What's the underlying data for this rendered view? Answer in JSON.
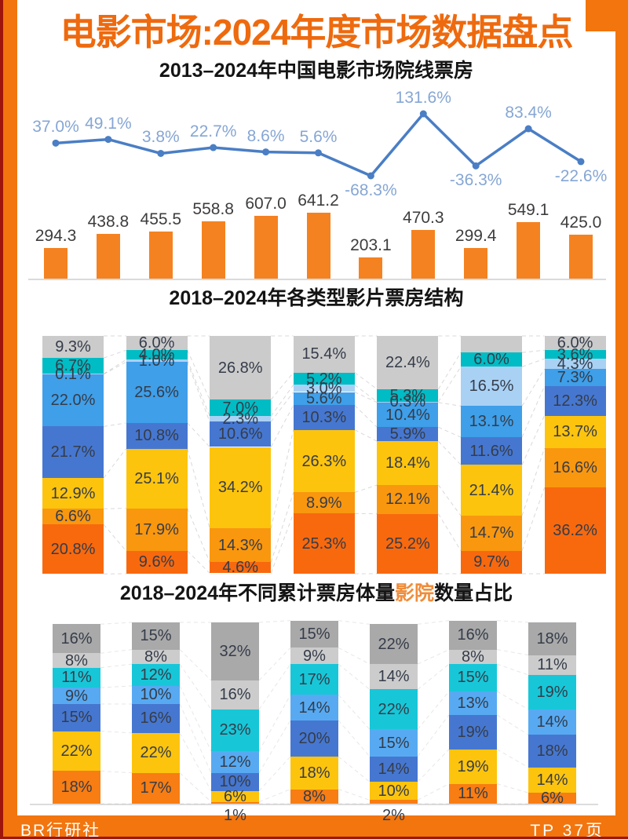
{
  "page": {
    "title": "电影市场:2024年度市场数据盘点",
    "footer": {
      "left": "BR行研社",
      "right": "TP 37页"
    },
    "colors": {
      "frame": "#f2750e",
      "edge": "#9e150c",
      "title_text": "#ee6a0e",
      "content_bg": "#ffffff"
    }
  },
  "chart_data": [
    {
      "id": "box-office-combo",
      "type": "bar",
      "title": "2013–2024年中国电影市场院线票房",
      "bar_color": "#f58220",
      "bar_label_color": "#3d3d3d",
      "line_color": "#4a7ec5",
      "line_label_color": "#86a6d4",
      "bars": [
        {
          "label": "294.3",
          "value": 294.3
        },
        {
          "label": "438.8",
          "value": 438.8
        },
        {
          "label": "455.5",
          "value": 455.5
        },
        {
          "label": "558.8",
          "value": 558.8
        },
        {
          "label": "607.0",
          "value": 607.0
        },
        {
          "label": "641.2",
          "value": 641.2
        },
        {
          "label": "203.1",
          "value": 203.1
        },
        {
          "label": "470.3",
          "value": 470.3
        },
        {
          "label": "299.4",
          "value": 299.4
        },
        {
          "label": "549.1",
          "value": 549.1
        },
        {
          "label": "425.0",
          "value": 425.0
        }
      ],
      "line": [
        {
          "label": "37.0%",
          "value": 37.0
        },
        {
          "label": "49.1%",
          "value": 49.1
        },
        {
          "label": "3.8%",
          "value": 3.8
        },
        {
          "label": "22.7%",
          "value": 22.7
        },
        {
          "label": "8.6%",
          "value": 8.6
        },
        {
          "label": "5.6%",
          "value": 5.6
        },
        {
          "label": "-68.3%",
          "value": -68.3
        },
        {
          "label": "131.6%",
          "value": 131.6
        },
        {
          "label": "-36.3%",
          "value": -36.3
        },
        {
          "label": "83.4%",
          "value": 83.4
        },
        {
          "label": "-22.6%",
          "value": -22.6
        }
      ]
    },
    {
      "id": "genre-structure",
      "type": "bar",
      "title": "2018–2024年各类型影片票房结构",
      "label_color": "#353c49",
      "palette": {
        "gray": "#cbcbcb",
        "teal": "#00bcc4",
        "lightblue": "#a9d1f4",
        "blue": "#3f9fe9",
        "royal": "#4677d0",
        "yellow": "#fdc40e",
        "orange": "#f9970f",
        "deeporange": "#f8690e"
      },
      "columns": [
        {
          "segments": [
            {
              "label": "9.3%",
              "value": 9.3,
              "color": "gray"
            },
            {
              "label": "6.7%",
              "value": 6.7,
              "color": "teal"
            },
            {
              "label": "0.1%",
              "value": 0.1,
              "color": "lightblue"
            },
            {
              "label": "22.0%",
              "value": 22.0,
              "color": "blue"
            },
            {
              "label": "21.7%",
              "value": 21.7,
              "color": "royal"
            },
            {
              "label": "12.9%",
              "value": 12.9,
              "color": "yellow"
            },
            {
              "label": "6.6%",
              "value": 6.6,
              "color": "orange"
            },
            {
              "label": "20.8%",
              "value": 20.8,
              "color": "deeporange"
            }
          ]
        },
        {
          "segments": [
            {
              "label": "6.0%",
              "value": 6.0,
              "color": "gray"
            },
            {
              "label": "4.0%",
              "value": 4.0,
              "color": "teal"
            },
            {
              "label": "1.0%",
              "value": 1.0,
              "color": "lightblue"
            },
            {
              "label": "25.6%",
              "value": 25.6,
              "color": "blue"
            },
            {
              "label": "10.8%",
              "value": 10.8,
              "color": "royal"
            },
            {
              "label": "25.1%",
              "value": 25.1,
              "color": "yellow"
            },
            {
              "label": "17.9%",
              "value": 17.9,
              "color": "orange"
            },
            {
              "label": "9.6%",
              "value": 9.6,
              "color": "deeporange"
            }
          ]
        },
        {
          "segments": [
            {
              "label": "26.8%",
              "value": 26.8,
              "color": "gray"
            },
            {
              "label": "7.0%",
              "value": 7.0,
              "color": "teal"
            },
            {
              "label": "2.3%",
              "value": 2.3,
              "color": "lightblue"
            },
            {
              "label": "10.6%",
              "value": 10.6,
              "color": "royal"
            },
            {
              "label": "34.2%",
              "value": 34.2,
              "color": "yellow"
            },
            {
              "label": "14.3%",
              "value": 14.3,
              "color": "orange"
            },
            {
              "label": "4.6%",
              "value": 4.6,
              "color": "deeporange"
            }
          ]
        },
        {
          "segments": [
            {
              "label": "15.4%",
              "value": 15.4,
              "color": "gray"
            },
            {
              "label": "5.2%",
              "value": 5.2,
              "color": "teal"
            },
            {
              "label": "3.0%",
              "value": 3.0,
              "color": "lightblue"
            },
            {
              "label": "5.6%",
              "value": 5.6,
              "color": "blue"
            },
            {
              "label": "10.3%",
              "value": 10.3,
              "color": "royal"
            },
            {
              "label": "26.3%",
              "value": 26.3,
              "color": "yellow"
            },
            {
              "label": "8.9%",
              "value": 8.9,
              "color": "orange"
            },
            {
              "label": "25.3%",
              "value": 25.3,
              "color": "deeporange"
            }
          ]
        },
        {
          "segments": [
            {
              "label": "22.4%",
              "value": 22.4,
              "color": "gray"
            },
            {
              "label": "5.3%",
              "value": 5.3,
              "color": "teal"
            },
            {
              "label": "0.3%",
              "value": 0.3,
              "color": "lightblue"
            },
            {
              "label": "10.4%",
              "value": 10.4,
              "color": "blue"
            },
            {
              "label": "5.9%",
              "value": 5.9,
              "color": "royal"
            },
            {
              "label": "18.4%",
              "value": 18.4,
              "color": "yellow"
            },
            {
              "label": "12.1%",
              "value": 12.1,
              "color": "orange"
            },
            {
              "label": "25.2%",
              "value": 25.2,
              "color": "deeporange"
            }
          ]
        },
        {
          "segments": [
            {
              "label": "",
              "value": 7.0,
              "color": "gray"
            },
            {
              "label": "6.0%",
              "value": 6.0,
              "color": "teal"
            },
            {
              "label": "16.5%",
              "value": 16.5,
              "color": "lightblue"
            },
            {
              "label": "13.1%",
              "value": 13.1,
              "color": "blue"
            },
            {
              "label": "11.6%",
              "value": 11.6,
              "color": "royal"
            },
            {
              "label": "21.4%",
              "value": 21.4,
              "color": "yellow"
            },
            {
              "label": "14.7%",
              "value": 14.7,
              "color": "orange"
            },
            {
              "label": "9.7%",
              "value": 9.7,
              "color": "deeporange"
            }
          ]
        },
        {
          "segments": [
            {
              "label": "6.0%",
              "value": 6.0,
              "color": "gray"
            },
            {
              "label": "3.6%",
              "value": 3.6,
              "color": "teal"
            },
            {
              "label": "4.3%",
              "value": 4.3,
              "color": "lightblue"
            },
            {
              "label": "7.3%",
              "value": 7.3,
              "color": "blue"
            },
            {
              "label": "12.3%",
              "value": 12.3,
              "color": "royal"
            },
            {
              "label": "13.7%",
              "value": 13.7,
              "color": "yellow"
            },
            {
              "label": "16.6%",
              "value": 16.6,
              "color": "orange"
            },
            {
              "label": "36.2%",
              "value": 36.2,
              "color": "deeporange"
            }
          ]
        }
      ]
    },
    {
      "id": "cinema-count-share",
      "type": "bar",
      "title_parts": {
        "prefix": "2018–2024年不同累计票房体量",
        "highlight": "影院",
        "suffix": "数量占比",
        "highlight_color": "#ef8c3a"
      },
      "label_color": "#353c49",
      "palette": {
        "darkgray": "#a9a9a9",
        "lightgray": "#cccccc",
        "cyan": "#17c7d8",
        "lightblue": "#57aaf2",
        "royal": "#4677d0",
        "yellow": "#fdc40e",
        "orange": "#f87d12"
      },
      "columns": [
        {
          "segments": [
            {
              "label": "16%",
              "value": 16,
              "color": "darkgray"
            },
            {
              "label": "8%",
              "value": 8,
              "color": "lightgray"
            },
            {
              "label": "11%",
              "value": 11,
              "color": "cyan"
            },
            {
              "label": "9%",
              "value": 9,
              "color": "lightblue"
            },
            {
              "label": "15%",
              "value": 15,
              "color": "royal"
            },
            {
              "label": "22%",
              "value": 22,
              "color": "yellow"
            },
            {
              "label": "18%",
              "value": 18,
              "color": "orange"
            }
          ]
        },
        {
          "segments": [
            {
              "label": "15%",
              "value": 15,
              "color": "darkgray"
            },
            {
              "label": "8%",
              "value": 8,
              "color": "lightgray"
            },
            {
              "label": "12%",
              "value": 12,
              "color": "cyan"
            },
            {
              "label": "10%",
              "value": 10,
              "color": "lightblue"
            },
            {
              "label": "16%",
              "value": 16,
              "color": "royal"
            },
            {
              "label": "22%",
              "value": 22,
              "color": "yellow"
            },
            {
              "label": "17%",
              "value": 17,
              "color": "orange"
            }
          ]
        },
        {
          "segments": [
            {
              "label": "32%",
              "value": 32,
              "color": "darkgray"
            },
            {
              "label": "16%",
              "value": 16,
              "color": "lightgray"
            },
            {
              "label": "23%",
              "value": 23,
              "color": "cyan"
            },
            {
              "label": "12%",
              "value": 12,
              "color": "lightblue"
            },
            {
              "label": "10%",
              "value": 10,
              "color": "royal"
            },
            {
              "label": "6%",
              "value": 6,
              "color": "yellow"
            },
            {
              "label": "1%",
              "value": 1,
              "color": "orange",
              "below": true
            }
          ]
        },
        {
          "segments": [
            {
              "label": "15%",
              "value": 15,
              "color": "darkgray"
            },
            {
              "label": "9%",
              "value": 9,
              "color": "lightgray"
            },
            {
              "label": "17%",
              "value": 17,
              "color": "cyan"
            },
            {
              "label": "14%",
              "value": 14,
              "color": "lightblue"
            },
            {
              "label": "20%",
              "value": 20,
              "color": "royal"
            },
            {
              "label": "18%",
              "value": 18,
              "color": "yellow"
            },
            {
              "label": "8%",
              "value": 8,
              "color": "orange"
            }
          ]
        },
        {
          "segments": [
            {
              "label": "22%",
              "value": 22,
              "color": "darkgray"
            },
            {
              "label": "14%",
              "value": 14,
              "color": "lightgray"
            },
            {
              "label": "22%",
              "value": 22,
              "color": "cyan"
            },
            {
              "label": "15%",
              "value": 15,
              "color": "lightblue"
            },
            {
              "label": "14%",
              "value": 14,
              "color": "royal"
            },
            {
              "label": "10%",
              "value": 10,
              "color": "yellow"
            },
            {
              "label": "2%",
              "value": 2,
              "color": "orange",
              "below": true
            }
          ]
        },
        {
          "segments": [
            {
              "label": "16%",
              "value": 16,
              "color": "darkgray"
            },
            {
              "label": "8%",
              "value": 8,
              "color": "lightgray"
            },
            {
              "label": "15%",
              "value": 15,
              "color": "cyan"
            },
            {
              "label": "13%",
              "value": 13,
              "color": "lightblue"
            },
            {
              "label": "19%",
              "value": 19,
              "color": "royal"
            },
            {
              "label": "19%",
              "value": 19,
              "color": "yellow"
            },
            {
              "label": "11%",
              "value": 11,
              "color": "orange"
            }
          ]
        },
        {
          "segments": [
            {
              "label": "18%",
              "value": 18,
              "color": "darkgray"
            },
            {
              "label": "11%",
              "value": 11,
              "color": "lightgray"
            },
            {
              "label": "19%",
              "value": 19,
              "color": "cyan"
            },
            {
              "label": "14%",
              "value": 14,
              "color": "lightblue"
            },
            {
              "label": "18%",
              "value": 18,
              "color": "royal"
            },
            {
              "label": "14%",
              "value": 14,
              "color": "yellow"
            },
            {
              "label": "6%",
              "value": 6,
              "color": "orange"
            }
          ]
        }
      ]
    }
  ]
}
